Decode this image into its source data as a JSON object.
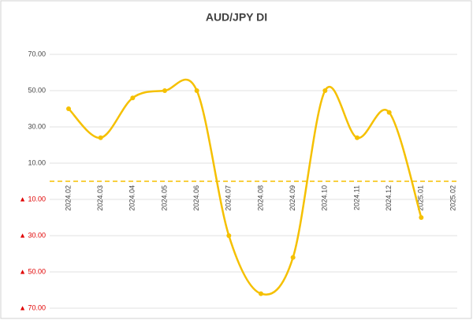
{
  "chart_data": {
    "type": "line",
    "title": "AUD/JPY  DI",
    "categories": [
      "2024.02",
      "2024.03",
      "2024.04",
      "2024.05",
      "2024.06",
      "2024.07",
      "2024.08",
      "2024.09",
      "2024.10",
      "2024.11",
      "2024.12",
      "2025.01",
      "2025.02"
    ],
    "series": [
      {
        "name": "AUD/JPY DI",
        "color": "#f5c000",
        "values": [
          40,
          24,
          46,
          50,
          50,
          -30,
          -62,
          -42,
          50,
          24,
          38,
          -20,
          null
        ]
      }
    ],
    "smooth": true,
    "ylim": [
      -70,
      70
    ],
    "yticks": [
      {
        "value": -70,
        "label": "▲ 70.00"
      },
      {
        "value": -50,
        "label": "▲ 50.00"
      },
      {
        "value": -30,
        "label": "▲ 30.00"
      },
      {
        "value": -10,
        "label": "▲ 10.00"
      },
      {
        "value": 10,
        "label": "10.00"
      },
      {
        "value": 30,
        "label": "30.00"
      },
      {
        "value": 50,
        "label": "50.00"
      },
      {
        "value": 70,
        "label": "70.00"
      }
    ],
    "negative_tick_color": "#e00000",
    "grid": true,
    "zero_line": 0
  }
}
